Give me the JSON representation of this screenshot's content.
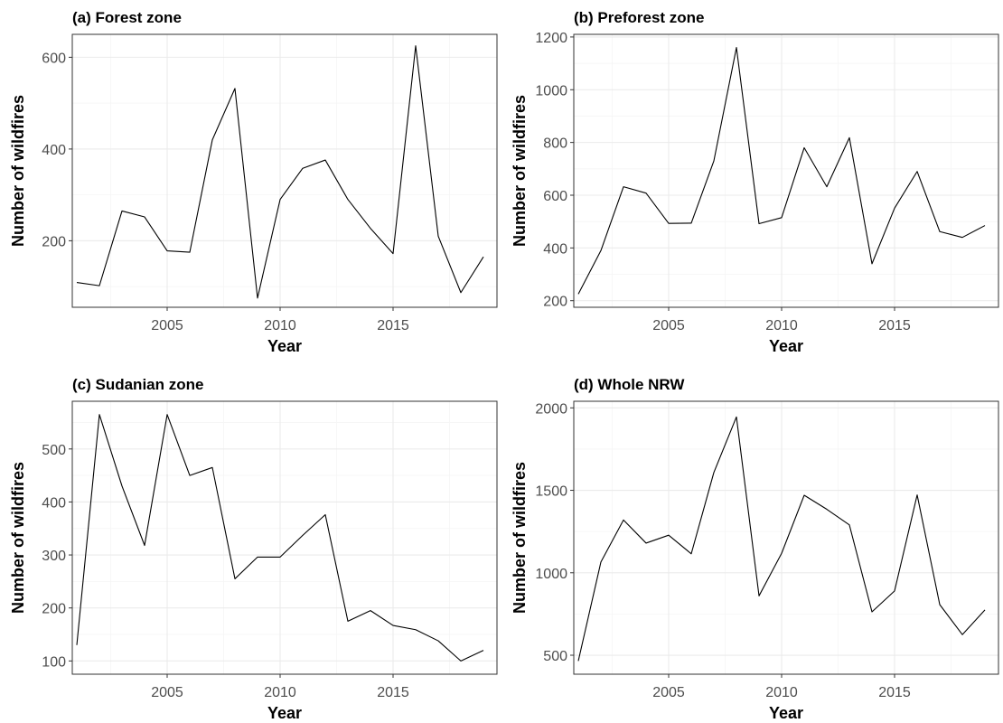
{
  "chart_data": [
    {
      "type": "line",
      "title": "(a) Forest zone",
      "xlabel": "Year",
      "ylabel": "Number of wildfires",
      "x": [
        2001,
        2002,
        2003,
        2004,
        2005,
        2006,
        2007,
        2008,
        2009,
        2010,
        2011,
        2012,
        2013,
        2014,
        2015,
        2016,
        2017,
        2018,
        2019
      ],
      "series": [
        {
          "values": [
            109,
            102,
            265,
            252,
            178,
            175,
            420,
            532,
            75,
            290,
            358,
            376,
            290,
            227,
            172,
            625,
            210,
            87,
            165
          ]
        }
      ],
      "xlim": [
        2000.8,
        2019.6
      ],
      "ylim": [
        55,
        650
      ],
      "xticks": [
        2005,
        2010,
        2015
      ],
      "xtick_labels": [
        "2005",
        "2010",
        "2015"
      ],
      "yticks": [
        200,
        400,
        600
      ],
      "ytick_labels": [
        "200",
        "400",
        "600"
      ],
      "grid": true
    },
    {
      "type": "line",
      "title": "(b) Preforest zone",
      "xlabel": "Year",
      "ylabel": "Number of wildfires",
      "x": [
        2001,
        2002,
        2003,
        2004,
        2005,
        2006,
        2007,
        2008,
        2009,
        2010,
        2011,
        2012,
        2013,
        2014,
        2015,
        2016,
        2017,
        2018,
        2019
      ],
      "series": [
        {
          "values": [
            225,
            390,
            632,
            608,
            493,
            494,
            730,
            1160,
            492,
            515,
            780,
            632,
            818,
            340,
            551,
            690,
            462,
            440,
            485
          ]
        }
      ],
      "xlim": [
        2000.8,
        2019.6
      ],
      "ylim": [
        175,
        1210
      ],
      "xticks": [
        2005,
        2010,
        2015
      ],
      "xtick_labels": [
        "2005",
        "2010",
        "2015"
      ],
      "yticks": [
        200,
        400,
        600,
        800,
        1000,
        1200
      ],
      "ytick_labels": [
        "200",
        "400",
        "600",
        "800",
        "1000",
        "1200"
      ],
      "grid": true
    },
    {
      "type": "line",
      "title": "(c) Sudanian zone",
      "xlabel": "Year",
      "ylabel": "Number of wildfires",
      "x": [
        2001,
        2002,
        2003,
        2004,
        2005,
        2006,
        2007,
        2008,
        2009,
        2010,
        2011,
        2012,
        2013,
        2014,
        2015,
        2016,
        2017,
        2018,
        2019
      ],
      "series": [
        {
          "values": [
            130,
            565,
            430,
            318,
            565,
            450,
            465,
            255,
            296,
            296,
            337,
            376,
            175,
            195,
            167,
            159,
            138,
            100,
            120
          ]
        }
      ],
      "xlim": [
        2000.8,
        2019.6
      ],
      "ylim": [
        75,
        590
      ],
      "xticks": [
        2005,
        2010,
        2015
      ],
      "xtick_labels": [
        "2005",
        "2010",
        "2015"
      ],
      "yticks": [
        100,
        200,
        300,
        400,
        500
      ],
      "ytick_labels": [
        "100",
        "200",
        "300",
        "400",
        "500"
      ],
      "grid": true
    },
    {
      "type": "line",
      "title": "(d) Whole NRW",
      "xlabel": "Year",
      "ylabel": "Number of wildfires",
      "x": [
        2001,
        2002,
        2003,
        2004,
        2005,
        2006,
        2007,
        2008,
        2009,
        2010,
        2011,
        2012,
        2013,
        2014,
        2015,
        2016,
        2017,
        2018,
        2019
      ],
      "series": [
        {
          "values": [
            465,
            1065,
            1320,
            1180,
            1228,
            1115,
            1608,
            1945,
            860,
            1118,
            1470,
            1385,
            1290,
            763,
            890,
            1472,
            807,
            625,
            775
          ]
        }
      ],
      "xlim": [
        2000.8,
        2019.6
      ],
      "ylim": [
        385,
        2040
      ],
      "xticks": [
        2005,
        2010,
        2015
      ],
      "xtick_labels": [
        "2005",
        "2010",
        "2015"
      ],
      "yticks": [
        500,
        1000,
        1500,
        2000
      ],
      "ytick_labels": [
        "500",
        "1000",
        "1500",
        "2000"
      ],
      "grid": true
    }
  ]
}
